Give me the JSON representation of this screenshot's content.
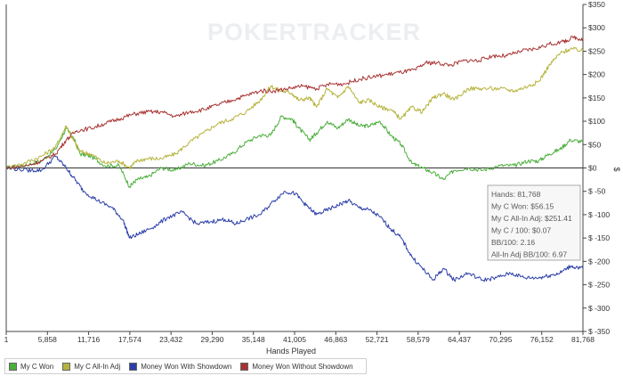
{
  "watermark": "POKERTRACKER",
  "chart_data": {
    "type": "line",
    "xlabel": "Hands Played",
    "ylabel": "$",
    "x_ticks": [
      "1",
      "5,858",
      "11,716",
      "17,574",
      "23,432",
      "29,290",
      "35,148",
      "41,005",
      "46,863",
      "52,721",
      "58,579",
      "64,437",
      "70,295",
      "76,152",
      "81,768"
    ],
    "y_ticks": [
      "$350",
      "$300",
      "$250",
      "$200",
      "$150",
      "$100",
      "$50",
      "$0",
      "$ -50",
      "$ -100",
      "$ -150",
      "$ -200",
      "$ -250",
      "$ -300",
      "$ -350"
    ],
    "xlim": [
      1,
      81768
    ],
    "ylim": [
      -350,
      350
    ],
    "grid": false,
    "legend_position": "bottom-left",
    "series": [
      {
        "name": "My C Won",
        "color": "#4caf3c",
        "points": [
          [
            1,
            0
          ],
          [
            2500,
            5
          ],
          [
            5000,
            15
          ],
          [
            7000,
            40
          ],
          [
            8500,
            85
          ],
          [
            9500,
            65
          ],
          [
            10500,
            30
          ],
          [
            12000,
            25
          ],
          [
            14000,
            5
          ],
          [
            16000,
            5
          ],
          [
            17500,
            -40
          ],
          [
            18500,
            -25
          ],
          [
            20000,
            -20
          ],
          [
            22000,
            0
          ],
          [
            24000,
            -5
          ],
          [
            26000,
            10
          ],
          [
            28000,
            5
          ],
          [
            30000,
            15
          ],
          [
            32000,
            30
          ],
          [
            34000,
            55
          ],
          [
            36000,
            70
          ],
          [
            37500,
            70
          ],
          [
            39000,
            110
          ],
          [
            40500,
            105
          ],
          [
            41500,
            85
          ],
          [
            43000,
            60
          ],
          [
            44000,
            75
          ],
          [
            45500,
            100
          ],
          [
            47000,
            85
          ],
          [
            48500,
            105
          ],
          [
            50000,
            90
          ],
          [
            51500,
            90
          ],
          [
            53000,
            100
          ],
          [
            54500,
            70
          ],
          [
            56000,
            50
          ],
          [
            57500,
            10
          ],
          [
            59000,
            0
          ],
          [
            60500,
            -10
          ],
          [
            62000,
            -25
          ],
          [
            63500,
            -5
          ],
          [
            65500,
            0
          ],
          [
            67500,
            -5
          ],
          [
            70000,
            5
          ],
          [
            72000,
            5
          ],
          [
            74000,
            15
          ],
          [
            75500,
            15
          ],
          [
            77000,
            30
          ],
          [
            78500,
            40
          ],
          [
            80000,
            60
          ],
          [
            81768,
            56
          ]
        ]
      },
      {
        "name": "My C All-In Adj",
        "color": "#b5b33b",
        "points": [
          [
            1,
            0
          ],
          [
            2500,
            10
          ],
          [
            5000,
            25
          ],
          [
            7000,
            45
          ],
          [
            8500,
            90
          ],
          [
            9500,
            60
          ],
          [
            10500,
            35
          ],
          [
            12000,
            30
          ],
          [
            14000,
            10
          ],
          [
            16000,
            15
          ],
          [
            17500,
            0
          ],
          [
            18500,
            15
          ],
          [
            20000,
            20
          ],
          [
            22000,
            20
          ],
          [
            24000,
            30
          ],
          [
            26000,
            55
          ],
          [
            28000,
            75
          ],
          [
            30000,
            95
          ],
          [
            32000,
            105
          ],
          [
            34000,
            120
          ],
          [
            36000,
            145
          ],
          [
            37500,
            175
          ],
          [
            39000,
            165
          ],
          [
            40500,
            160
          ],
          [
            41500,
            145
          ],
          [
            43000,
            150
          ],
          [
            44000,
            130
          ],
          [
            45500,
            170
          ],
          [
            47000,
            150
          ],
          [
            48500,
            175
          ],
          [
            50000,
            140
          ],
          [
            51500,
            145
          ],
          [
            53000,
            130
          ],
          [
            54500,
            125
          ],
          [
            56000,
            105
          ],
          [
            57500,
            130
          ],
          [
            59000,
            120
          ],
          [
            60500,
            150
          ],
          [
            62000,
            160
          ],
          [
            63500,
            145
          ],
          [
            65500,
            170
          ],
          [
            67500,
            170
          ],
          [
            70000,
            170
          ],
          [
            72000,
            165
          ],
          [
            74000,
            175
          ],
          [
            75500,
            185
          ],
          [
            77000,
            220
          ],
          [
            78500,
            245
          ],
          [
            80000,
            255
          ],
          [
            81768,
            251
          ]
        ]
      },
      {
        "name": "Money Won With Showdown",
        "color": "#2c3fa8",
        "points": [
          [
            1,
            0
          ],
          [
            3000,
            -5
          ],
          [
            5000,
            -5
          ],
          [
            7000,
            25
          ],
          [
            8500,
            0
          ],
          [
            9500,
            -20
          ],
          [
            11000,
            -50
          ],
          [
            13000,
            -70
          ],
          [
            15000,
            -85
          ],
          [
            16500,
            -110
          ],
          [
            17500,
            -150
          ],
          [
            19000,
            -140
          ],
          [
            21000,
            -125
          ],
          [
            23000,
            -105
          ],
          [
            25000,
            -95
          ],
          [
            27000,
            -120
          ],
          [
            29000,
            -115
          ],
          [
            31000,
            -110
          ],
          [
            32500,
            -120
          ],
          [
            34000,
            -110
          ],
          [
            36000,
            -100
          ],
          [
            38000,
            -70
          ],
          [
            39500,
            -50
          ],
          [
            41000,
            -55
          ],
          [
            42500,
            -80
          ],
          [
            44000,
            -100
          ],
          [
            45500,
            -90
          ],
          [
            47000,
            -80
          ],
          [
            48500,
            -70
          ],
          [
            50000,
            -85
          ],
          [
            51500,
            -90
          ],
          [
            53000,
            -105
          ],
          [
            54500,
            -130
          ],
          [
            56000,
            -150
          ],
          [
            57500,
            -190
          ],
          [
            59000,
            -215
          ],
          [
            60500,
            -240
          ],
          [
            62000,
            -215
          ],
          [
            63500,
            -240
          ],
          [
            65500,
            -225
          ],
          [
            67500,
            -240
          ],
          [
            69500,
            -235
          ],
          [
            71500,
            -225
          ],
          [
            73500,
            -235
          ],
          [
            75500,
            -235
          ],
          [
            77000,
            -230
          ],
          [
            78500,
            -225
          ],
          [
            80000,
            -210
          ],
          [
            81768,
            -215
          ]
        ]
      },
      {
        "name": "Money Won Without Showdown",
        "color": "#a83232",
        "points": [
          [
            1,
            0
          ],
          [
            3000,
            5
          ],
          [
            5000,
            15
          ],
          [
            7000,
            30
          ],
          [
            8500,
            60
          ],
          [
            10000,
            80
          ],
          [
            12000,
            85
          ],
          [
            14000,
            95
          ],
          [
            16000,
            105
          ],
          [
            18000,
            115
          ],
          [
            20000,
            120
          ],
          [
            22000,
            120
          ],
          [
            24000,
            110
          ],
          [
            26000,
            120
          ],
          [
            28000,
            125
          ],
          [
            30000,
            135
          ],
          [
            32000,
            145
          ],
          [
            34000,
            155
          ],
          [
            36000,
            165
          ],
          [
            38000,
            165
          ],
          [
            40000,
            170
          ],
          [
            42000,
            175
          ],
          [
            44000,
            170
          ],
          [
            46000,
            180
          ],
          [
            48000,
            180
          ],
          [
            50000,
            190
          ],
          [
            52000,
            195
          ],
          [
            54000,
            200
          ],
          [
            56000,
            205
          ],
          [
            58000,
            210
          ],
          [
            59500,
            225
          ],
          [
            61000,
            225
          ],
          [
            63000,
            220
          ],
          [
            65000,
            230
          ],
          [
            67000,
            230
          ],
          [
            69000,
            240
          ],
          [
            71000,
            240
          ],
          [
            73000,
            250
          ],
          [
            75000,
            255
          ],
          [
            77000,
            265
          ],
          [
            79000,
            270
          ],
          [
            80500,
            280
          ],
          [
            81768,
            275
          ]
        ]
      }
    ]
  },
  "tooltip": {
    "lines": [
      "Hands: 81,768",
      "My C Won: $56.15",
      "My C All-In Adj: $251.41",
      "My C / 100: $0.07",
      "BB/100: 2.16",
      "All-In Adj BB/100: 6.97"
    ]
  }
}
